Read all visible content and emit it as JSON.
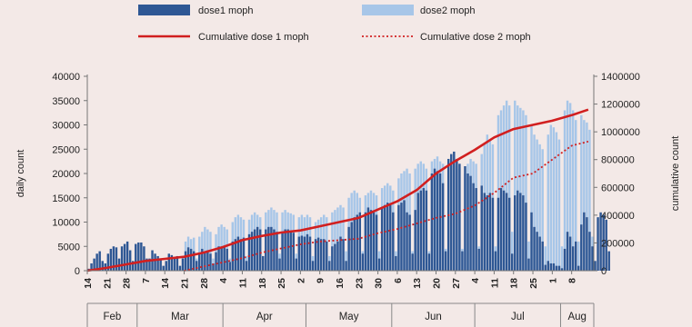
{
  "chart_data": {
    "type": "bar",
    "title": "",
    "legend": {
      "placement": "top",
      "entries": [
        {
          "key": "dose1",
          "label": "dose1  moph"
        },
        {
          "key": "dose2",
          "label": "dose2 moph"
        },
        {
          "key": "cum1",
          "label": "Cumulative dose 1 moph"
        },
        {
          "key": "cum2",
          "label": "Cumulative dose 2 moph"
        }
      ]
    },
    "ylabel_left": "daily count",
    "ylabel_right": "cumulative count",
    "ylim_left": [
      0,
      40000
    ],
    "ylim_right": [
      0,
      1400000
    ],
    "yticks_left": [
      0,
      5000,
      10000,
      15000,
      20000,
      25000,
      30000,
      35000,
      40000
    ],
    "yticks_right": [
      0,
      200000,
      400000,
      600000,
      800000,
      1000000,
      1200000,
      1400000
    ],
    "xlim_days": [
      14,
      197
    ],
    "x_tick_labels": [
      "14",
      "21",
      "28",
      "7",
      "14",
      "21",
      "28",
      "4",
      "11",
      "18",
      "25",
      "2",
      "9",
      "16",
      "23",
      "30",
      "6",
      "13",
      "20",
      "27",
      "4",
      "11",
      "18",
      "25",
      "1",
      "8"
    ],
    "x_tick_day": [
      14,
      21,
      28,
      35,
      42,
      49,
      56,
      63,
      70,
      77,
      84,
      91,
      98,
      105,
      112,
      119,
      126,
      133,
      140,
      147,
      154,
      161,
      168,
      175,
      182,
      189
    ],
    "month_labels": [
      "Feb",
      "Mar",
      "Apr",
      "May",
      "Jun",
      "Jul",
      "Aug"
    ],
    "month_ranges": [
      [
        14,
        32
      ],
      [
        32,
        63
      ],
      [
        63,
        93
      ],
      [
        93,
        124
      ],
      [
        124,
        154
      ],
      [
        154,
        185
      ],
      [
        185,
        197
      ]
    ],
    "series": [
      {
        "name": "dose1  moph",
        "type": "bar",
        "color": "#2e5794",
        "values": [
          400,
          1500,
          2500,
          3500,
          4000,
          2000,
          1500,
          3500,
          4500,
          5000,
          4800,
          2500,
          5000,
          5500,
          6000,
          4200,
          2000,
          5500,
          5800,
          5800,
          5000,
          2500,
          2500,
          4200,
          3500,
          3000,
          2500,
          1000,
          2000,
          3500,
          3200,
          2800,
          3000,
          1000,
          2500,
          4000,
          4800,
          4500,
          4000,
          2000,
          3500,
          4500,
          4000,
          4200,
          3500,
          1500,
          3800,
          5000,
          4800,
          4800,
          4500,
          1800,
          6000,
          6500,
          7000,
          6500,
          6800,
          2000,
          7500,
          8000,
          8500,
          9000,
          8500,
          3000,
          8500,
          9000,
          9000,
          8500,
          8000,
          2500,
          8000,
          8500,
          8500,
          8200,
          7800,
          2500,
          7000,
          7200,
          7000,
          7500,
          7000,
          2000,
          6500,
          6800,
          6500,
          6500,
          6000,
          2000,
          5000,
          5500,
          6000,
          7000,
          6500,
          2000,
          9000,
          10000,
          11000,
          11500,
          12000,
          3500,
          12000,
          13000,
          12500,
          12000,
          11500,
          2500,
          13000,
          13500,
          14000,
          13500,
          12000,
          3000,
          13500,
          14000,
          14500,
          12000,
          11500,
          3500,
          12500,
          16000,
          16500,
          17000,
          16500,
          3500,
          20000,
          21000,
          20500,
          20000,
          18000,
          4000,
          23000,
          24000,
          24500,
          23000,
          22000,
          4000,
          21500,
          20000,
          19500,
          18000,
          17000,
          4500,
          17500,
          16000,
          15500,
          16000,
          15000,
          4000,
          15000,
          17000,
          16500,
          16000,
          15000,
          3500,
          15500,
          16500,
          16000,
          15500,
          14000,
          2500,
          12000,
          9000,
          8000,
          7000,
          6000,
          1200,
          2000,
          1500,
          1500,
          1000,
          1000,
          500,
          4500,
          8000,
          7000,
          5000,
          6000,
          1000,
          9500,
          12000,
          11000,
          8000,
          5000,
          2000,
          11000,
          12000,
          11500,
          10500,
          4000
        ]
      },
      {
        "name": "dose2 moph",
        "type": "bar",
        "color": "#a7c6e8",
        "values": [
          0,
          0,
          0,
          0,
          0,
          0,
          0,
          0,
          0,
          0,
          0,
          0,
          0,
          0,
          0,
          0,
          0,
          0,
          0,
          0,
          0,
          0,
          0,
          0,
          0,
          0,
          0,
          0,
          0,
          0,
          0,
          0,
          0,
          0,
          3000,
          6000,
          7000,
          6500,
          6800,
          2500,
          7000,
          8000,
          9000,
          8500,
          8000,
          2500,
          7500,
          9000,
          9500,
          9000,
          8500,
          2500,
          10000,
          11000,
          11500,
          11000,
          10500,
          3000,
          10500,
          11500,
          12000,
          11500,
          11000,
          3000,
          12000,
          12500,
          13000,
          12500,
          12000,
          3500,
          12000,
          12500,
          12000,
          11800,
          11500,
          3500,
          11000,
          11500,
          11000,
          11500,
          11000,
          3000,
          10000,
          10500,
          11000,
          11500,
          11000,
          3000,
          12000,
          12500,
          13000,
          13500,
          13000,
          4000,
          15000,
          16000,
          16500,
          16000,
          15000,
          4000,
          15500,
          16000,
          16500,
          16000,
          15500,
          4000,
          17000,
          17500,
          18000,
          17500,
          16500,
          4000,
          19000,
          20000,
          20500,
          21000,
          20000,
          4000,
          21000,
          22000,
          22500,
          22000,
          21000,
          4000,
          22500,
          23000,
          23500,
          22500,
          22000,
          4500,
          21000,
          21500,
          22000,
          21500,
          21000,
          4500,
          20000,
          22000,
          23000,
          22500,
          22000,
          5000,
          24000,
          26000,
          28000,
          27000,
          26000,
          5000,
          32000,
          33000,
          34000,
          35000,
          34000,
          8000,
          35000,
          34000,
          33500,
          33000,
          32000,
          6000,
          30000,
          28000,
          27000,
          26000,
          25000,
          5000,
          28000,
          30000,
          29500,
          28500,
          27000,
          5000,
          33000,
          35000,
          34500,
          33000,
          31000,
          6000,
          32000,
          31000,
          30500,
          29000,
          7000
        ]
      },
      {
        "name": "Cumulative dose 1 moph",
        "type": "line",
        "color": "#d11f1f",
        "x": [
          14,
          21,
          28,
          35,
          42,
          49,
          56,
          63,
          70,
          77,
          84,
          91,
          98,
          105,
          112,
          119,
          126,
          133,
          140,
          147,
          154,
          161,
          168,
          175,
          182,
          189,
          195
        ],
        "values": [
          0,
          20000,
          45000,
          70000,
          85000,
          100000,
          130000,
          170000,
          220000,
          250000,
          275000,
          290000,
          320000,
          350000,
          380000,
          440000,
          500000,
          580000,
          700000,
          790000,
          870000,
          960000,
          1020000,
          1050000,
          1080000,
          1120000,
          1160000
        ]
      },
      {
        "name": "Cumulative dose 2 moph",
        "type": "line",
        "dashed": true,
        "color": "#d11f1f",
        "x": [
          49,
          56,
          63,
          70,
          77,
          84,
          91,
          98,
          105,
          112,
          119,
          126,
          133,
          140,
          147,
          154,
          161,
          168,
          175,
          182,
          189,
          195
        ],
        "values": [
          0,
          30000,
          60000,
          90000,
          130000,
          160000,
          190000,
          210000,
          220000,
          230000,
          270000,
          300000,
          340000,
          380000,
          410000,
          470000,
          560000,
          670000,
          700000,
          800000,
          900000,
          930000
        ]
      }
    ]
  }
}
